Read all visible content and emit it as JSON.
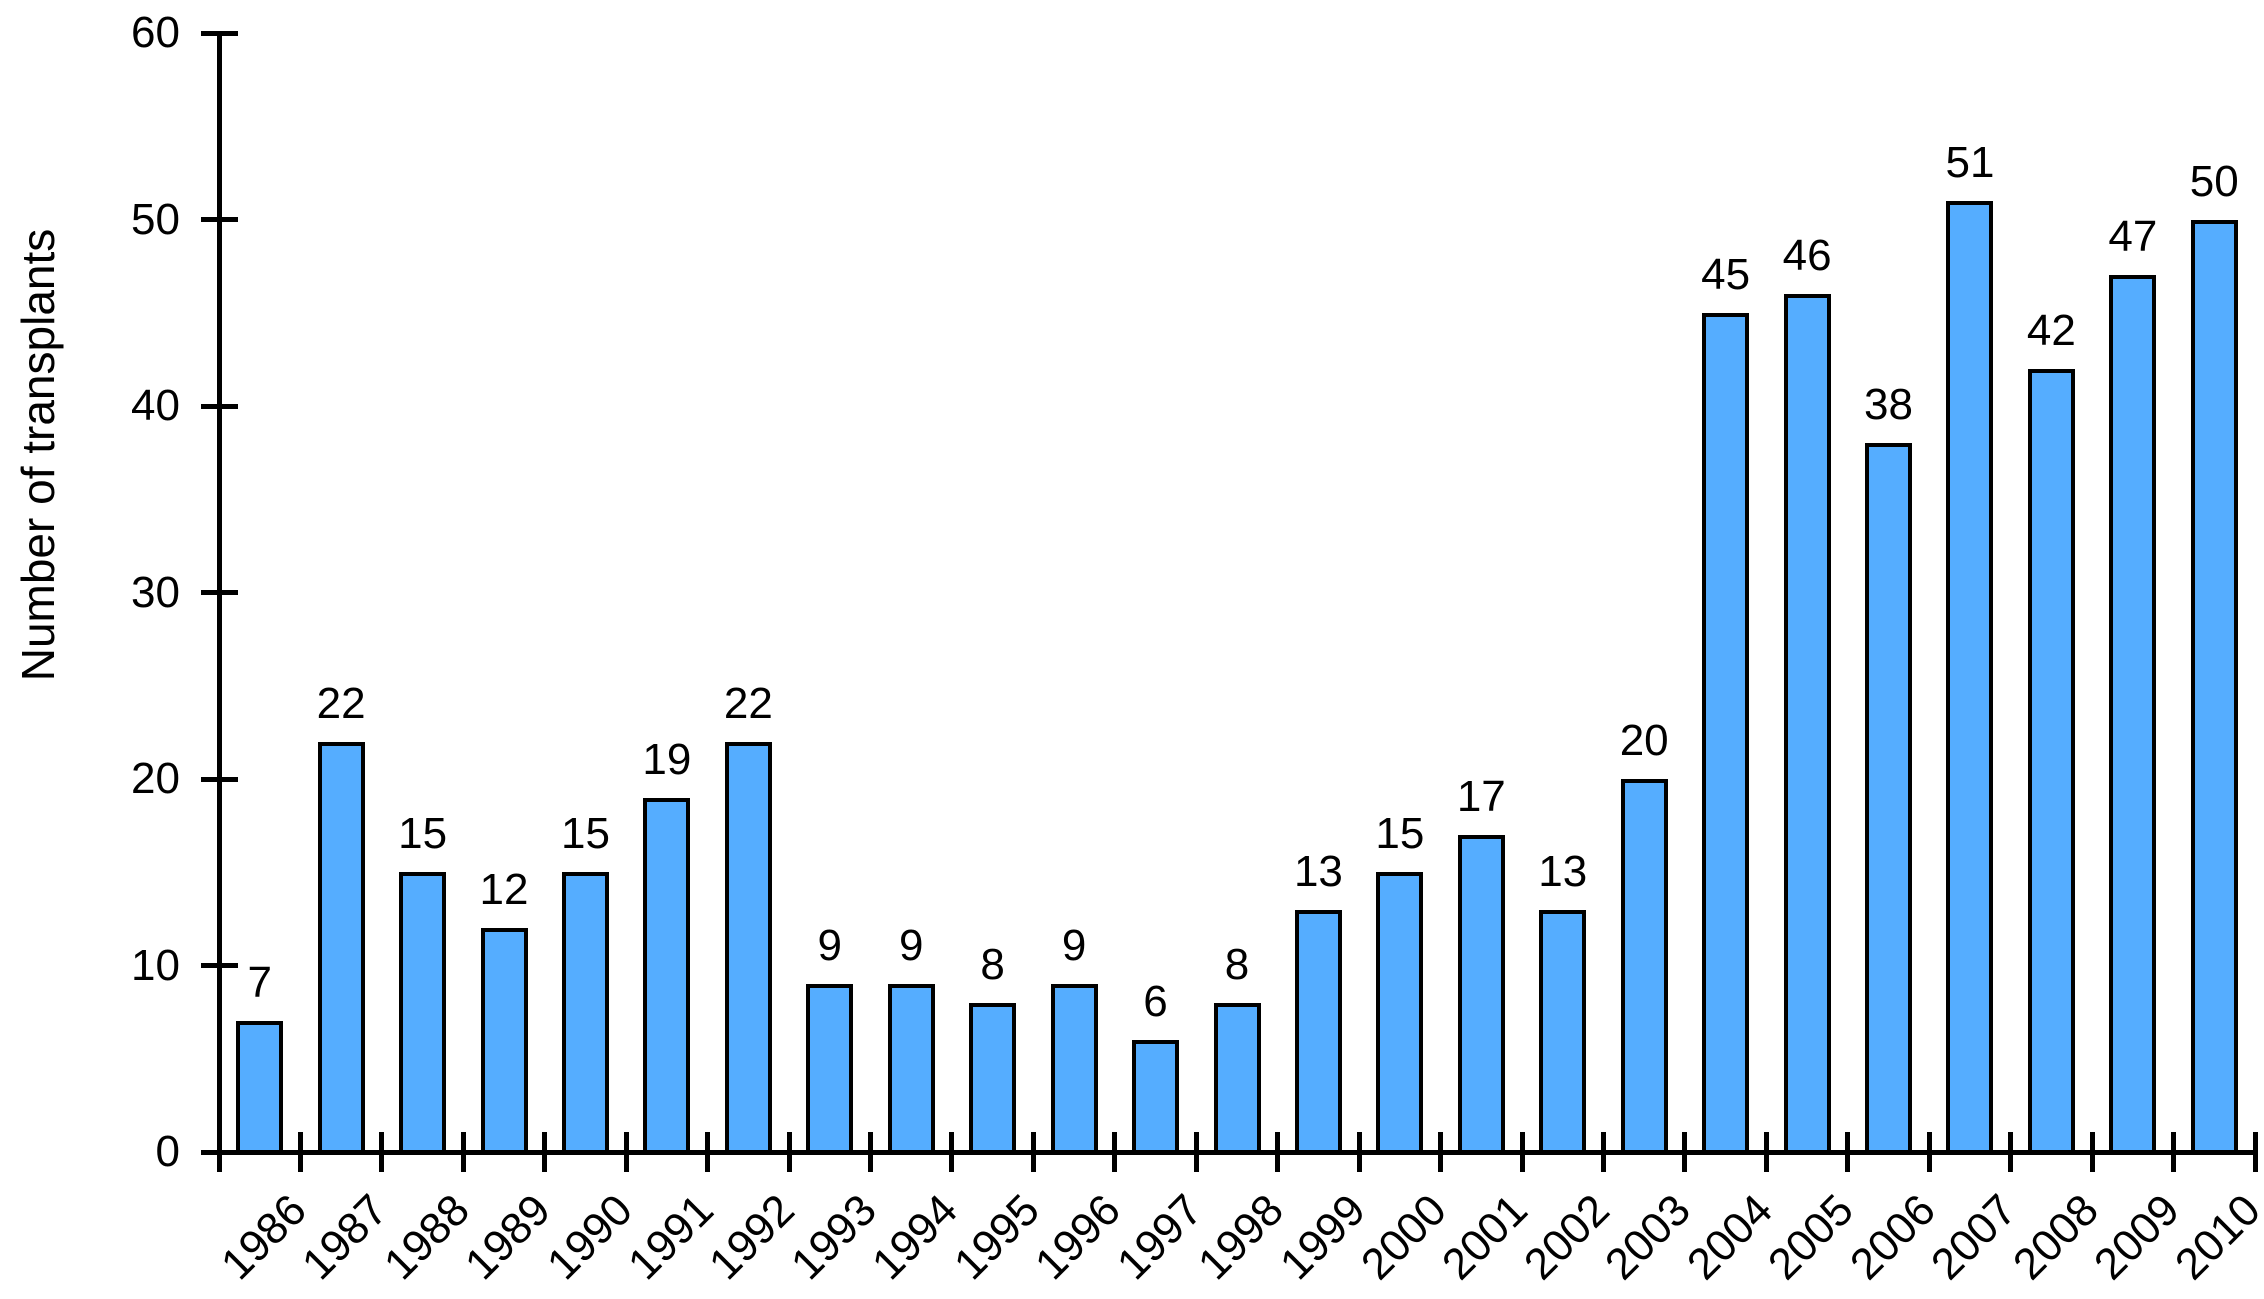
{
  "chart_data": {
    "type": "bar",
    "title": "",
    "xlabel": "",
    "ylabel": "Number of transplants",
    "categories": [
      "1986",
      "1987",
      "1988",
      "1989",
      "1990",
      "1991",
      "1992",
      "1993",
      "1994",
      "1995",
      "1996",
      "1997",
      "1998",
      "1999",
      "2000",
      "2001",
      "2002",
      "2003",
      "2004",
      "2005",
      "2006",
      "2007",
      "2008",
      "2009",
      "2010"
    ],
    "values": [
      7,
      22,
      15,
      12,
      15,
      19,
      22,
      9,
      9,
      8,
      9,
      6,
      8,
      13,
      15,
      17,
      13,
      20,
      45,
      46,
      38,
      51,
      42,
      47,
      50
    ],
    "ylim": [
      0,
      60
    ],
    "yticks": [
      0,
      10,
      20,
      30,
      40,
      50,
      60
    ],
    "grid": false,
    "legend_position": "none",
    "value_labels_shown": true,
    "x_tick_label_rotation_deg": 45,
    "bar_fill_color": "#55ADFF",
    "bar_border_color": "#000000",
    "axis_color": "#000000",
    "text_color": "#000000",
    "background_color": "#FFFFFF"
  }
}
